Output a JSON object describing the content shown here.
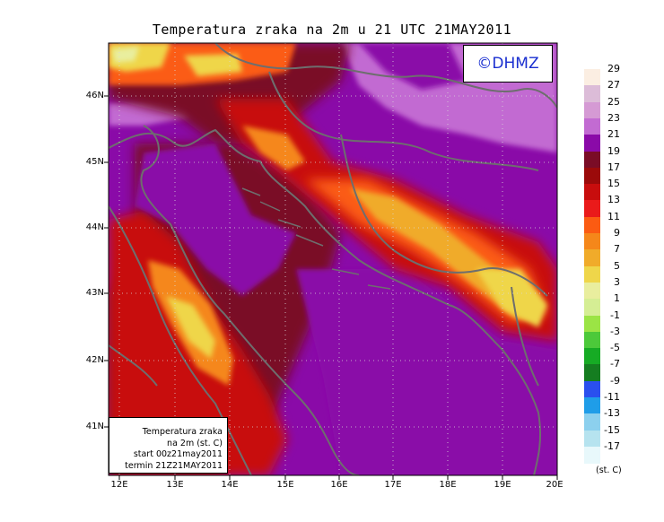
{
  "title": "Temperatura zraka na 2m u 21 UTC 21MAY2011",
  "logo": "©DHMZ",
  "info_box": [
    "Temperatura zraka",
    "na 2m (st. C)",
    "start 00z21may2011",
    "termin 21Z21MAY2011"
  ],
  "lat_labels": [
    "46N",
    "45N",
    "44N",
    "43N",
    "42N",
    "41N"
  ],
  "lon_labels": [
    "12E",
    "13E",
    "14E",
    "15E",
    "16E",
    "17E",
    "18E",
    "19E",
    "20E"
  ],
  "colorbar": {
    "labels": [
      "29",
      "27",
      "25",
      "23",
      "21",
      "19",
      "17",
      "15",
      "13",
      "11",
      "9",
      "7",
      "5",
      "3",
      "1",
      "-1",
      "-3",
      "-5",
      "-7",
      "-9",
      "-11",
      "-13",
      "-15",
      "-17"
    ],
    "colors": [
      "#fbeee2",
      "#dcbcd8",
      "#d59ad4",
      "#c26bd2",
      "#8a0aa8",
      "#7a0c26",
      "#9b0a0a",
      "#c80d0d",
      "#ea1a1a",
      "#fb5b12",
      "#f5871a",
      "#f0ab2a",
      "#efd64a",
      "#e9ee9e",
      "#d5ee94",
      "#9be445",
      "#4cc93a",
      "#16ab24",
      "#157d20",
      "#2a4fee",
      "#1f9de8",
      "#8cd0ee",
      "#b6e3ef",
      "#e8f8fb"
    ],
    "unit": "(st. C)"
  }
}
